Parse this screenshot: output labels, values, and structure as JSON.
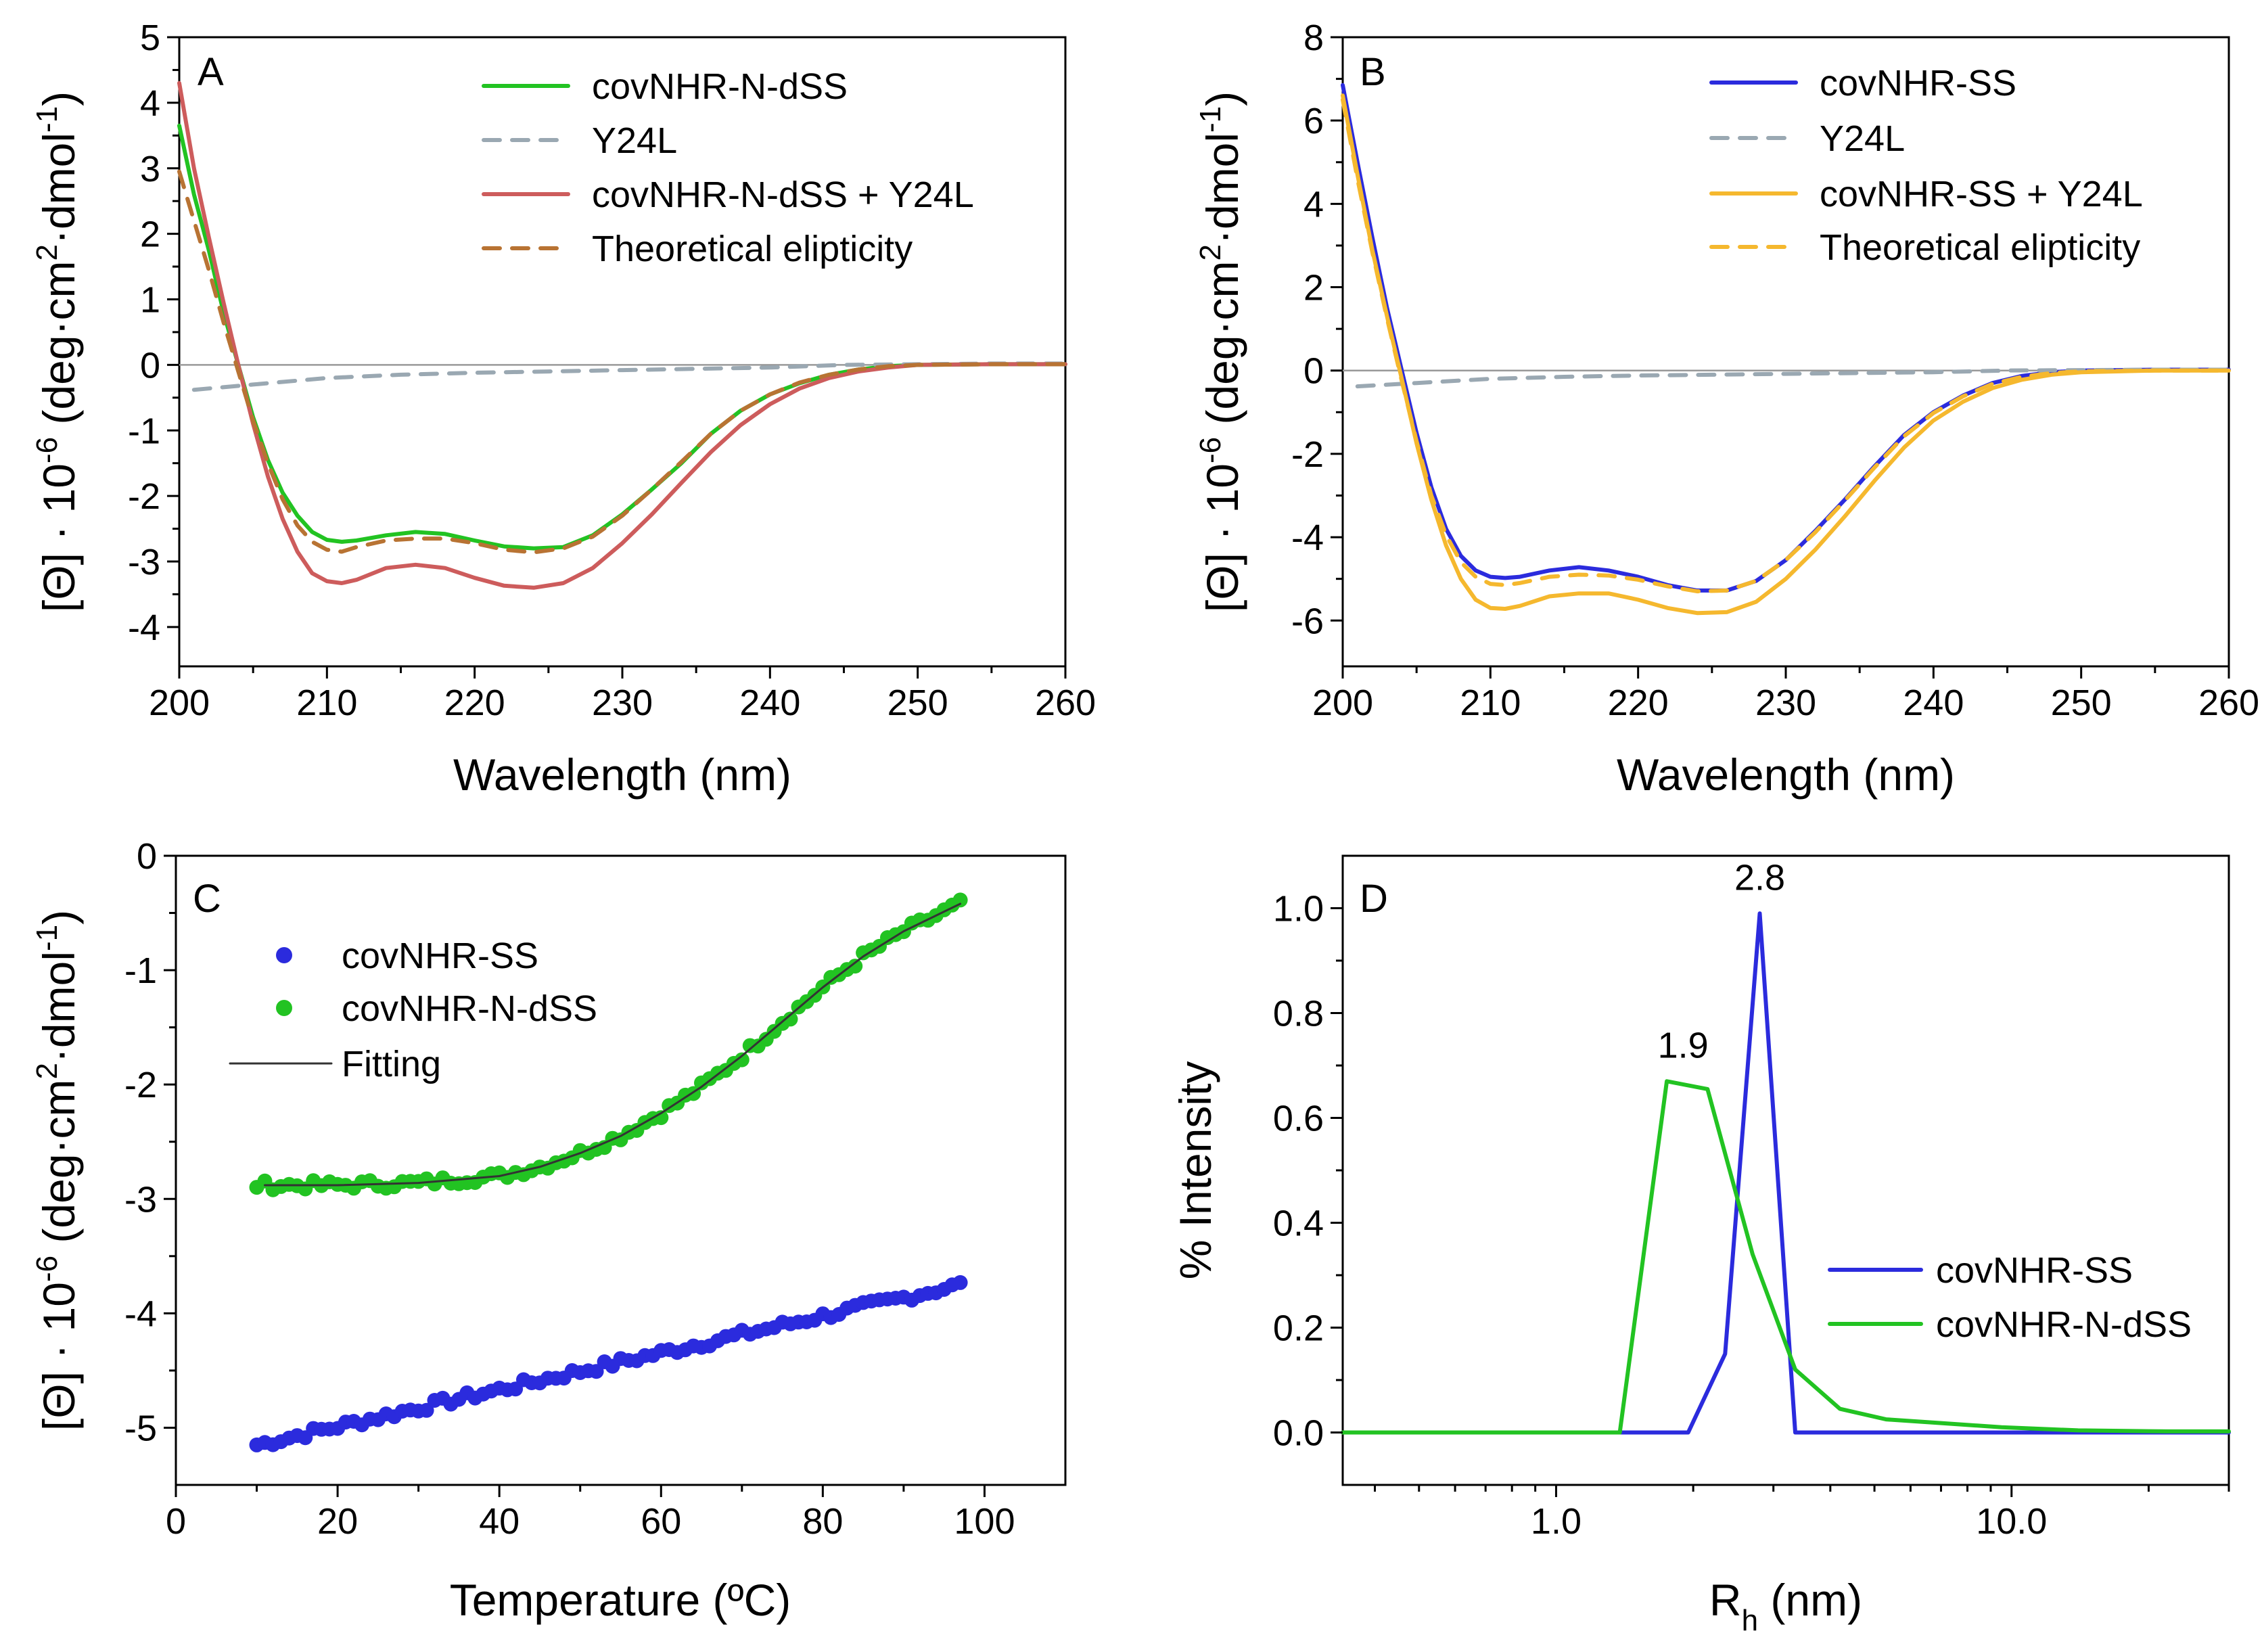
{
  "chart_data": [
    {
      "panel": "A",
      "type": "line",
      "xlabel": "Wavelength (nm)",
      "ylabel": "[Θ] · 10-6 (deg·cm2·dmol-1)",
      "xlim": [
        200,
        260
      ],
      "ylim": [
        -4.6,
        5
      ],
      "x_ticks": [
        200,
        210,
        220,
        230,
        240,
        250,
        260
      ],
      "y_ticks": [
        -4,
        -3,
        -2,
        -1,
        0,
        1,
        2,
        3,
        4,
        5
      ],
      "zero_line": true,
      "legend": "top-right",
      "series": [
        {
          "name": "covNHR-N-dSS",
          "color": "#22c322",
          "dash": false,
          "x": [
            200,
            201,
            202,
            203,
            204,
            205,
            206,
            207,
            208,
            209,
            210,
            211,
            212,
            214,
            216,
            218,
            220,
            222,
            224,
            226,
            228,
            230,
            232,
            234,
            236,
            238,
            240,
            242,
            244,
            246,
            248,
            250,
            255,
            260
          ],
          "y": [
            3.65,
            2.6,
            1.75,
            0.8,
            0.0,
            -0.8,
            -1.45,
            -1.95,
            -2.3,
            -2.55,
            -2.67,
            -2.7,
            -2.68,
            -2.6,
            -2.55,
            -2.58,
            -2.68,
            -2.77,
            -2.8,
            -2.78,
            -2.6,
            -2.28,
            -1.9,
            -1.5,
            -1.05,
            -0.7,
            -0.45,
            -0.28,
            -0.15,
            -0.07,
            -0.02,
            0.0,
            0.01,
            0.01
          ]
        },
        {
          "name": "Y24L",
          "color": "#9aa8b2",
          "dash": true,
          "x": [
            201,
            205,
            210,
            215,
            220,
            225,
            230,
            235,
            240,
            245,
            250,
            255,
            260
          ],
          "y": [
            -0.38,
            -0.3,
            -0.2,
            -0.15,
            -0.12,
            -0.1,
            -0.08,
            -0.06,
            -0.04,
            0.0,
            0.01,
            0.02,
            0.02
          ]
        },
        {
          "name": "covNHR-N-dSS + Y24L",
          "color": "#cd5c5c",
          "dash": false,
          "x": [
            200,
            201,
            202,
            203,
            204,
            205,
            206,
            207,
            208,
            209,
            210,
            211,
            212,
            214,
            216,
            218,
            220,
            222,
            224,
            226,
            228,
            230,
            232,
            234,
            236,
            238,
            240,
            242,
            244,
            246,
            248,
            250,
            255,
            260
          ],
          "y": [
            4.3,
            3.0,
            1.95,
            0.95,
            0.0,
            -0.9,
            -1.7,
            -2.35,
            -2.85,
            -3.18,
            -3.3,
            -3.33,
            -3.28,
            -3.1,
            -3.05,
            -3.1,
            -3.25,
            -3.37,
            -3.4,
            -3.33,
            -3.1,
            -2.72,
            -2.28,
            -1.8,
            -1.33,
            -0.92,
            -0.6,
            -0.36,
            -0.2,
            -0.1,
            -0.04,
            0.0,
            0.01,
            0.01
          ]
        },
        {
          "name": "Theoretical elipticity",
          "color": "#b87333",
          "dash": true,
          "x": [
            200,
            201,
            202,
            203,
            204,
            205,
            206,
            207,
            208,
            209,
            210,
            211,
            212,
            214,
            216,
            218,
            220,
            222,
            224,
            226,
            228,
            230,
            232,
            234,
            236,
            238,
            240,
            242,
            244,
            246,
            248,
            250,
            255,
            260
          ],
          "y": [
            2.95,
            2.2,
            1.45,
            0.65,
            -0.1,
            -0.85,
            -1.5,
            -2.05,
            -2.45,
            -2.7,
            -2.82,
            -2.85,
            -2.78,
            -2.68,
            -2.65,
            -2.65,
            -2.72,
            -2.82,
            -2.86,
            -2.8,
            -2.62,
            -2.3,
            -1.9,
            -1.48,
            -1.05,
            -0.7,
            -0.45,
            -0.27,
            -0.15,
            -0.07,
            -0.02,
            0.0,
            0.01,
            0.01
          ]
        }
      ]
    },
    {
      "panel": "B",
      "type": "line",
      "xlabel": "Wavelength (nm)",
      "ylabel": "[Θ] · 10-6 (deg·cm2·dmol-1)",
      "xlim": [
        200,
        260
      ],
      "ylim": [
        -7.1,
        8
      ],
      "x_ticks": [
        200,
        210,
        220,
        230,
        240,
        250,
        260
      ],
      "y_ticks": [
        -6,
        -4,
        -2,
        0,
        2,
        4,
        6,
        8
      ],
      "zero_line": true,
      "legend": "top-right",
      "series": [
        {
          "name": "covNHR-SS",
          "color": "#2b2bdd",
          "dash": false,
          "x": [
            200,
            201,
            202,
            203,
            204,
            205,
            206,
            207,
            208,
            209,
            210,
            211,
            212,
            214,
            216,
            218,
            220,
            222,
            224,
            226,
            228,
            230,
            232,
            234,
            236,
            238,
            240,
            242,
            244,
            246,
            248,
            250,
            255,
            260
          ],
          "y": [
            6.85,
            5.0,
            3.2,
            1.5,
            0.0,
            -1.5,
            -2.8,
            -3.8,
            -4.45,
            -4.8,
            -4.95,
            -4.98,
            -4.95,
            -4.8,
            -4.72,
            -4.8,
            -4.95,
            -5.15,
            -5.28,
            -5.28,
            -5.05,
            -4.55,
            -3.85,
            -3.1,
            -2.3,
            -1.55,
            -1.0,
            -0.6,
            -0.3,
            -0.13,
            -0.04,
            0.0,
            0.02,
            0.02
          ]
        },
        {
          "name": "Y24L",
          "color": "#9aa8b2",
          "dash": true,
          "x": [
            201,
            205,
            210,
            215,
            220,
            225,
            230,
            235,
            240,
            245,
            250,
            255,
            260
          ],
          "y": [
            -0.38,
            -0.3,
            -0.2,
            -0.15,
            -0.12,
            -0.1,
            -0.08,
            -0.06,
            -0.04,
            0.0,
            0.01,
            0.02,
            0.02
          ]
        },
        {
          "name": "covNHR-SS + Y24L",
          "color": "#f5b82e",
          "dash": false,
          "x": [
            200,
            201,
            202,
            203,
            204,
            205,
            206,
            207,
            208,
            209,
            210,
            211,
            212,
            214,
            216,
            218,
            220,
            222,
            224,
            226,
            228,
            230,
            232,
            234,
            236,
            238,
            240,
            242,
            244,
            246,
            248,
            250,
            255,
            260
          ],
          "y": [
            6.6,
            4.7,
            2.9,
            1.3,
            -0.2,
            -1.75,
            -3.1,
            -4.2,
            -5.0,
            -5.5,
            -5.7,
            -5.72,
            -5.65,
            -5.42,
            -5.35,
            -5.35,
            -5.5,
            -5.7,
            -5.82,
            -5.8,
            -5.55,
            -5.0,
            -4.3,
            -3.5,
            -2.65,
            -1.85,
            -1.2,
            -0.75,
            -0.42,
            -0.22,
            -0.1,
            -0.04,
            0.0,
            0.0
          ]
        },
        {
          "name": "Theoretical elipticity",
          "color": "#f5b82e",
          "dash": true,
          "x": [
            200,
            201,
            202,
            203,
            204,
            205,
            206,
            207,
            208,
            209,
            210,
            211,
            212,
            214,
            216,
            218,
            220,
            222,
            224,
            226,
            228,
            230,
            232,
            234,
            236,
            238,
            240,
            242,
            244,
            246,
            248,
            250,
            255,
            260
          ],
          "y": [
            6.5,
            4.6,
            2.85,
            1.25,
            -0.25,
            -1.7,
            -3.0,
            -3.95,
            -4.6,
            -4.95,
            -5.12,
            -5.15,
            -5.1,
            -4.95,
            -4.9,
            -4.92,
            -5.02,
            -5.18,
            -5.3,
            -5.28,
            -5.05,
            -4.55,
            -3.88,
            -3.12,
            -2.33,
            -1.58,
            -1.02,
            -0.62,
            -0.32,
            -0.15,
            -0.06,
            -0.02,
            0.0,
            0.0
          ]
        }
      ]
    },
    {
      "panel": "C",
      "type": "scatter",
      "xlabel": "Temperature (ºC)",
      "ylabel": "[Θ] · 10-6 (deg·cm2·dmol-1)",
      "xlim": [
        0,
        110
      ],
      "ylim": [
        -5.5,
        0
      ],
      "x_ticks": [
        0,
        20,
        40,
        60,
        80,
        100
      ],
      "y_ticks": [
        -5,
        -4,
        -3,
        -2,
        -1,
        0
      ],
      "legend": "top-left",
      "series": [
        {
          "name": "covNHR-SS",
          "color": "#2b2bdd",
          "kind": "scatter",
          "x_start": 10,
          "x_end": 97,
          "count": 88,
          "y_start": -5.15,
          "y_end": -3.75,
          "noise": 0.04
        },
        {
          "name": "covNHR-N-dSS",
          "color": "#22c322",
          "kind": "scatter",
          "x_start": 10,
          "x_end": 97,
          "count": 88,
          "follows": "Fitting",
          "noise": 0.04
        },
        {
          "name": "Fitting",
          "color": "#333333",
          "kind": "line",
          "x": [
            11,
            20,
            30,
            40,
            45,
            50,
            55,
            60,
            65,
            70,
            75,
            80,
            85,
            90,
            97
          ],
          "y": [
            -2.88,
            -2.88,
            -2.86,
            -2.8,
            -2.72,
            -2.6,
            -2.45,
            -2.25,
            -2.02,
            -1.75,
            -1.45,
            -1.15,
            -0.88,
            -0.66,
            -0.42
          ]
        }
      ]
    },
    {
      "panel": "D",
      "type": "line",
      "xscale": "log",
      "xlabel": "Rh (nm)",
      "ylabel": "% Intensity",
      "xlim": [
        0.34,
        30
      ],
      "ylim": [
        -0.1,
        1.1
      ],
      "x_ticks": [
        1,
        10
      ],
      "y_ticks": [
        0.0,
        0.2,
        0.4,
        0.6,
        0.8,
        1.0
      ],
      "legend": "bottom-right",
      "series": [
        {
          "name": "covNHR-SS",
          "color": "#2b2bdd",
          "dash": false,
          "x": [
            0.34,
            1.95,
            2.35,
            2.8,
            3.35,
            30
          ],
          "y": [
            0.0,
            0.0,
            0.15,
            0.99,
            0.0,
            0.0
          ]
        },
        {
          "name": "covNHR-N-dSS",
          "color": "#22c322",
          "dash": false,
          "x": [
            0.34,
            1.38,
            1.75,
            2.15,
            2.7,
            3.35,
            4.2,
            5.3,
            7.0,
            9.5,
            14.0,
            22.0,
            30.0
          ],
          "y": [
            0.0,
            0.0,
            0.67,
            0.655,
            0.34,
            0.12,
            0.045,
            0.025,
            0.018,
            0.01,
            0.004,
            0.002,
            0.002
          ]
        }
      ],
      "annotations": [
        {
          "text": "2.8",
          "x": 2.8,
          "y": 0.99
        },
        {
          "text": "1.9",
          "x": 1.9,
          "y": 0.67
        }
      ]
    }
  ],
  "panels": {
    "A": {
      "letter": "A",
      "xlabel": "Wavelength (nm)",
      "ylabel_main": "[Θ] · 10",
      "ylabel_exp1": "-6",
      "ylabel_mid": " (deg·cm",
      "ylabel_exp2": "2",
      "ylabel_end1": "·dmol",
      "ylabel_exp3": "-1",
      "ylabel_end2": ")"
    },
    "B": {
      "letter": "B",
      "xlabel": "Wavelength (nm)",
      "ylabel_main": "[Θ] · 10",
      "ylabel_exp1": "-6",
      "ylabel_mid": " (deg·cm",
      "ylabel_exp2": "2",
      "ylabel_end1": "·dmol",
      "ylabel_exp3": "-1",
      "ylabel_end2": ")"
    },
    "C": {
      "letter": "C",
      "xlabel": "Temperature (ºC)",
      "ylabel_main": "[Θ] · 10",
      "ylabel_exp1": "-6",
      "ylabel_mid": " (deg·cm",
      "ylabel_exp2": "2",
      "ylabel_end1": "·dmol",
      "ylabel_exp3": "-1",
      "ylabel_end2": ")"
    },
    "D": {
      "letter": "D",
      "xlabel_main": "R",
      "xlabel_sub": "h",
      "xlabel_end": " (nm)",
      "ylabel": "% Intensity"
    }
  }
}
